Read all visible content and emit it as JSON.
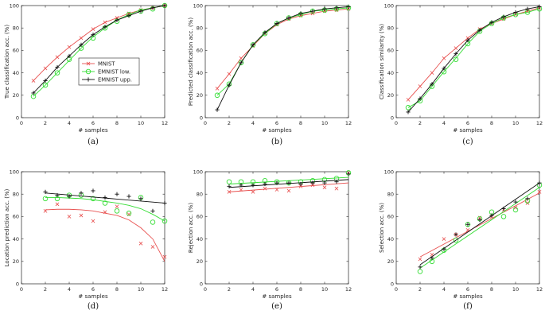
{
  "colors": {
    "MNIST": "#e8504f",
    "EMNIST low.": "#33dd33",
    "EMNIST upp.": "#111111"
  },
  "chart_data": [
    {
      "type": "line",
      "caption": "(a)",
      "xlabel": "# samples",
      "ylabel": "True classification acc. (%)",
      "xlim": [
        0,
        12
      ],
      "ylim": [
        0,
        100
      ],
      "xticks": [
        0,
        2,
        4,
        6,
        8,
        10,
        12
      ],
      "yticks": [
        0,
        20,
        40,
        60,
        80,
        100
      ],
      "grid": false,
      "legend": "center-left",
      "series": [
        {
          "name": "MNIST",
          "marker": "x",
          "x": [
            1,
            2,
            3,
            4,
            5,
            6,
            7,
            8,
            9,
            10,
            11,
            12
          ],
          "y": [
            33,
            44,
            54,
            63,
            71,
            79,
            85,
            89,
            93,
            96,
            98,
            100
          ],
          "fit": {
            "x": [
              1,
              2,
              3,
              4,
              5,
              6,
              7,
              8,
              9,
              10,
              11,
              12
            ],
            "y": [
              33,
              44,
              54,
              63,
              71,
              79,
              85,
              89,
              93,
              96,
              98,
              100
            ]
          }
        },
        {
          "name": "EMNIST low.",
          "marker": "o",
          "x": [
            1,
            2,
            3,
            4,
            5,
            6,
            7,
            8,
            9,
            10,
            11,
            12
          ],
          "y": [
            19,
            29,
            40,
            52,
            62,
            71,
            80,
            86,
            92,
            95,
            97,
            100
          ],
          "fit": {
            "x": [
              1,
              2,
              3,
              4,
              5,
              6,
              7,
              8,
              9,
              10,
              11,
              12
            ],
            "y": [
              19,
              29,
              40,
              51,
              62,
              72,
              80,
              87,
              92,
              96,
              98,
              100
            ]
          }
        },
        {
          "name": "EMNIST upp.",
          "marker": "+",
          "x": [
            1,
            2,
            3,
            4,
            5,
            6,
            7,
            8,
            9,
            10,
            11,
            12
          ],
          "y": [
            22,
            33,
            45,
            55,
            65,
            74,
            81,
            87,
            91,
            95,
            98,
            100
          ],
          "fit": {
            "x": [
              1,
              2,
              3,
              4,
              5,
              6,
              7,
              8,
              9,
              10,
              11,
              12
            ],
            "y": [
              22,
              33,
              45,
              55,
              65,
              74,
              81,
              87,
              91,
              95,
              98,
              100
            ]
          }
        }
      ]
    },
    {
      "type": "line",
      "caption": "(b)",
      "xlabel": "# samples",
      "ylabel": "Predicted classification acc. (%)",
      "xlim": [
        0,
        12
      ],
      "ylim": [
        0,
        100
      ],
      "xticks": [
        0,
        2,
        4,
        6,
        8,
        10,
        12
      ],
      "yticks": [
        0,
        20,
        40,
        60,
        80,
        100
      ],
      "grid": false,
      "legend": "",
      "series": [
        {
          "name": "MNIST",
          "marker": "x",
          "x": [
            1,
            2,
            3,
            4,
            5,
            6,
            7,
            8,
            9,
            10,
            11,
            12
          ],
          "y": [
            26,
            39,
            53,
            64,
            75,
            83,
            88,
            91,
            93,
            95,
            96,
            97
          ],
          "fit": {
            "x": [
              1,
              2,
              3,
              4,
              5,
              6,
              7,
              8,
              9,
              10,
              11,
              12
            ],
            "y": [
              26,
              39,
              53,
              64,
              75,
              83,
              88,
              91,
              93,
              95,
              96,
              97
            ]
          }
        },
        {
          "name": "EMNIST low.",
          "marker": "o",
          "x": [
            1,
            2,
            3,
            4,
            5,
            6,
            7,
            8,
            9,
            10,
            11,
            12
          ],
          "y": [
            20,
            30,
            49,
            65,
            75,
            84,
            89,
            92,
            95,
            96,
            97,
            98
          ],
          "fit": {
            "x": [
              1,
              2,
              3,
              4,
              5,
              6,
              7,
              8,
              9,
              10,
              11,
              12
            ],
            "y": [
              20,
              30,
              49,
              65,
              75,
              84,
              89,
              92,
              95,
              96,
              97,
              98
            ]
          }
        },
        {
          "name": "EMNIST upp.",
          "marker": "+",
          "x": [
            1,
            2,
            3,
            4,
            5,
            6,
            7,
            8,
            9,
            10,
            11,
            12
          ],
          "y": [
            7,
            29,
            49,
            65,
            76,
            84,
            89,
            93,
            95,
            97,
            98,
            99
          ],
          "fit": {
            "x": [
              1,
              2,
              3,
              4,
              5,
              6,
              7,
              8,
              9,
              10,
              11,
              12
            ],
            "y": [
              7,
              29,
              49,
              65,
              76,
              84,
              89,
              93,
              95,
              97,
              98,
              99
            ]
          }
        }
      ]
    },
    {
      "type": "line",
      "caption": "(c)",
      "xlabel": "# samples",
      "ylabel": "Classification similarity (%)",
      "xlim": [
        0,
        12
      ],
      "ylim": [
        0,
        100
      ],
      "xticks": [
        0,
        2,
        4,
        6,
        8,
        10,
        12
      ],
      "yticks": [
        0,
        20,
        40,
        60,
        80,
        100
      ],
      "grid": false,
      "legend": "",
      "series": [
        {
          "name": "MNIST",
          "marker": "x",
          "x": [
            1,
            2,
            3,
            4,
            5,
            6,
            7,
            8,
            9,
            10,
            11,
            12
          ],
          "y": [
            16,
            28,
            40,
            53,
            62,
            71,
            79,
            84,
            88,
            92,
            95,
            98
          ],
          "fit": {
            "x": [
              1,
              2,
              3,
              4,
              5,
              6,
              7,
              8,
              9,
              10,
              11,
              12
            ],
            "y": [
              16,
              28,
              40,
              53,
              62,
              71,
              79,
              84,
              88,
              92,
              95,
              98
            ]
          }
        },
        {
          "name": "EMNIST low.",
          "marker": "o",
          "x": [
            1,
            2,
            3,
            4,
            5,
            6,
            7,
            8,
            9,
            10,
            11,
            12
          ],
          "y": [
            9,
            15,
            28,
            41,
            52,
            66,
            77,
            84,
            89,
            92,
            94,
            97
          ],
          "fit": {
            "x": [
              1,
              2,
              3,
              4,
              5,
              6,
              7,
              8,
              9,
              10,
              11,
              12
            ],
            "y": [
              9,
              15,
              28,
              41,
              53,
              66,
              77,
              84,
              89,
              92,
              94,
              97
            ]
          }
        },
        {
          "name": "EMNIST upp.",
          "marker": "+",
          "x": [
            1,
            2,
            3,
            4,
            5,
            6,
            7,
            8,
            9,
            10,
            11,
            12
          ],
          "y": [
            5,
            17,
            30,
            44,
            57,
            69,
            78,
            85,
            90,
            94,
            97,
            99
          ],
          "fit": {
            "x": [
              1,
              2,
              3,
              4,
              5,
              6,
              7,
              8,
              9,
              10,
              11,
              12
            ],
            "y": [
              5,
              17,
              30,
              44,
              57,
              69,
              78,
              85,
              90,
              94,
              97,
              99
            ]
          }
        }
      ]
    },
    {
      "type": "scatter",
      "caption": "(d)",
      "xlabel": "# samples",
      "ylabel": "Location prediction acc. (%)",
      "xlim": [
        0,
        12
      ],
      "ylim": [
        0,
        100
      ],
      "xticks": [
        0,
        2,
        4,
        6,
        8,
        10,
        12
      ],
      "yticks": [
        0,
        20,
        40,
        60,
        80,
        100
      ],
      "grid": false,
      "legend": "",
      "series": [
        {
          "name": "MNIST",
          "marker": "x",
          "x": [
            2,
            3,
            4,
            5,
            6,
            7,
            8,
            9,
            10,
            11,
            12
          ],
          "y": [
            65,
            71,
            60,
            61,
            56,
            64,
            69,
            62,
            36,
            33,
            24
          ],
          "fit": {
            "x": [
              2,
              3,
              4,
              5,
              6,
              7,
              8,
              9,
              10,
              11,
              12
            ],
            "y": [
              66,
              66.5,
              66.5,
              66,
              65,
              63,
              61,
              57,
              50,
              40,
              20
            ]
          }
        },
        {
          "name": "EMNIST low.",
          "marker": "o",
          "x": [
            2,
            3,
            4,
            5,
            6,
            7,
            8,
            9,
            10,
            11,
            12
          ],
          "y": [
            76,
            76,
            79,
            79,
            76,
            72,
            65,
            63,
            77,
            55,
            56
          ],
          "fit": {
            "x": [
              2,
              3,
              4,
              5,
              6,
              7,
              8,
              9,
              10,
              11,
              12
            ],
            "y": [
              77,
              77,
              76.5,
              76,
              75,
              73.5,
              72,
              70,
              67,
              62,
              56
            ]
          }
        },
        {
          "name": "EMNIST upp.",
          "marker": "+",
          "x": [
            2,
            3,
            4,
            5,
            6,
            7,
            8,
            9,
            10,
            11,
            12
          ],
          "y": [
            82,
            79,
            78,
            81,
            83,
            77,
            80,
            78,
            76,
            65,
            72
          ],
          "fit": {
            "x": [
              2,
              3,
              4,
              5,
              6,
              7,
              8,
              9,
              10,
              11,
              12
            ],
            "y": [
              81,
              80.1,
              79.2,
              78.3,
              77.4,
              76.5,
              75.6,
              74.7,
              73.8,
              72.9,
              72
            ]
          }
        }
      ]
    },
    {
      "type": "scatter",
      "caption": "(e)",
      "xlabel": "# samples",
      "ylabel": "Rejection acc. (%)",
      "xlim": [
        0,
        12
      ],
      "ylim": [
        0,
        100
      ],
      "xticks": [
        0,
        2,
        4,
        6,
        8,
        10,
        12
      ],
      "yticks": [
        0,
        20,
        40,
        60,
        80,
        100
      ],
      "grid": false,
      "legend": "",
      "series": [
        {
          "name": "MNIST",
          "marker": "x",
          "x": [
            2,
            3,
            4,
            5,
            6,
            7,
            8,
            9,
            10,
            11,
            12
          ],
          "y": [
            82,
            84,
            82,
            85,
            84,
            83,
            87,
            88,
            86,
            85,
            99
          ],
          "fit": {
            "x": [
              2,
              12
            ],
            "y": [
              82,
              90
            ]
          }
        },
        {
          "name": "EMNIST low.",
          "marker": "o",
          "x": [
            2,
            3,
            4,
            5,
            6,
            7,
            8,
            9,
            10,
            11,
            12
          ],
          "y": [
            91,
            91,
            91,
            92,
            91,
            90,
            91,
            92,
            93,
            94,
            99
          ],
          "fit": {
            "x": [
              2,
              12
            ],
            "y": [
              89,
              95
            ]
          }
        },
        {
          "name": "EMNIST upp.",
          "marker": "+",
          "x": [
            2,
            3,
            4,
            5,
            6,
            7,
            8,
            9,
            10,
            11,
            12
          ],
          "y": [
            87,
            88,
            88,
            89,
            90,
            90,
            89,
            90,
            90,
            91,
            98
          ],
          "fit": {
            "x": [
              2,
              12
            ],
            "y": [
              86,
              93
            ]
          }
        }
      ]
    },
    {
      "type": "scatter",
      "caption": "(f)",
      "xlabel": "# samples",
      "ylabel": "Selection acc. (%)",
      "xlim": [
        0,
        12
      ],
      "ylim": [
        0,
        100
      ],
      "xticks": [
        0,
        2,
        4,
        6,
        8,
        10,
        12
      ],
      "yticks": [
        0,
        20,
        40,
        60,
        80,
        100
      ],
      "grid": false,
      "legend": "",
      "series": [
        {
          "name": "MNIST",
          "marker": "x",
          "x": [
            2,
            3,
            4,
            5,
            6,
            7,
            8,
            9,
            10,
            11,
            12
          ],
          "y": [
            22,
            26,
            40,
            44,
            48,
            59,
            60,
            66,
            68,
            72,
            82
          ],
          "fit": {
            "x": [
              2,
              12
            ],
            "y": [
              24,
              81
            ]
          }
        },
        {
          "name": "EMNIST low.",
          "marker": "o",
          "x": [
            2,
            3,
            4,
            5,
            6,
            7,
            8,
            9,
            10,
            11,
            12
          ],
          "y": [
            11,
            20,
            30,
            39,
            53,
            58,
            64,
            60,
            66,
            74,
            88
          ],
          "fit": {
            "x": [
              2,
              12
            ],
            "y": [
              14,
              86
            ]
          }
        },
        {
          "name": "EMNIST upp.",
          "marker": "+",
          "x": [
            2,
            3,
            4,
            5,
            6,
            7,
            8,
            9,
            10,
            11,
            12
          ],
          "y": [
            15,
            23,
            31,
            44,
            53,
            57,
            61,
            67,
            73,
            76,
            90
          ],
          "fit": {
            "x": [
              2,
              12
            ],
            "y": [
              17,
              90
            ]
          }
        }
      ]
    }
  ]
}
